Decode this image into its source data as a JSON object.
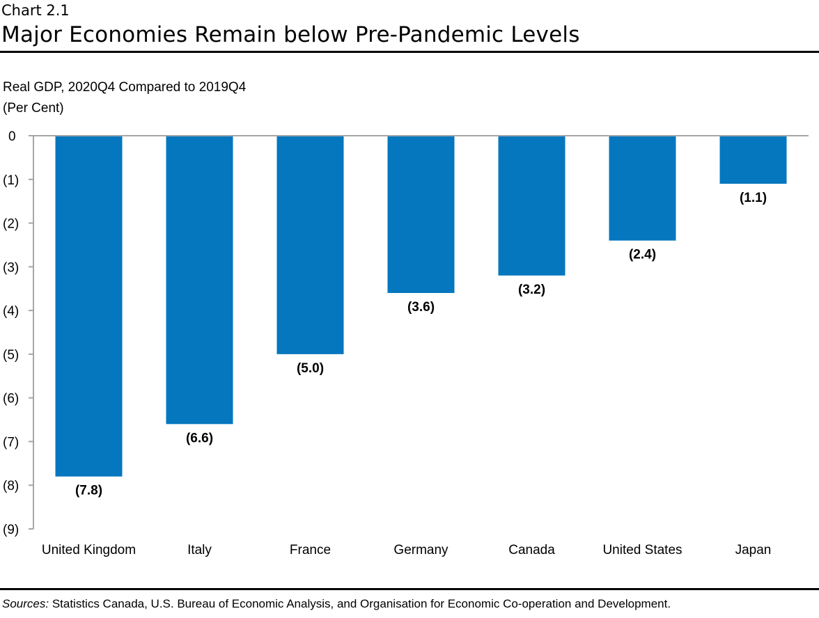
{
  "header": {
    "chart_number": "Chart 2.1",
    "title": "Major Economies Remain below Pre-Pandemic Levels"
  },
  "footer": {
    "sources_label": "Sources:",
    "sources_text": " Statistics Canada, U.S. Bureau of Economic Analysis, and Organisation for Economic Co-operation and Development."
  },
  "chart_data": {
    "type": "bar",
    "title": "Major Economies Remain below Pre-Pandemic Levels",
    "ylabel_line1": "Real GDP, 2020Q4 Compared to 2019Q4",
    "ylabel_line2": "(Per Cent)",
    "categories": [
      "United Kingdom",
      "Italy",
      "France",
      "Germany",
      "Canada",
      "United States",
      "Japan"
    ],
    "values": [
      -7.8,
      -6.6,
      -5.0,
      -3.6,
      -3.2,
      -2.4,
      -1.1
    ],
    "data_labels": [
      "(7.8)",
      "(6.6)",
      "(5.0)",
      "(3.6)",
      "(3.2)",
      "(2.4)",
      "(1.1)"
    ],
    "ylim": [
      -9,
      0
    ],
    "yticks": [
      0,
      -1,
      -2,
      -3,
      -4,
      -5,
      -6,
      -7,
      -8,
      -9
    ],
    "ytick_labels": [
      "0",
      "(1)",
      "(2)",
      "(3)",
      "(4)",
      "(5)",
      "(6)",
      "(7)",
      "(8)",
      "(9)"
    ],
    "grid": false,
    "bar_color": "#0477BF",
    "axis_color": "#A6A6A6"
  }
}
